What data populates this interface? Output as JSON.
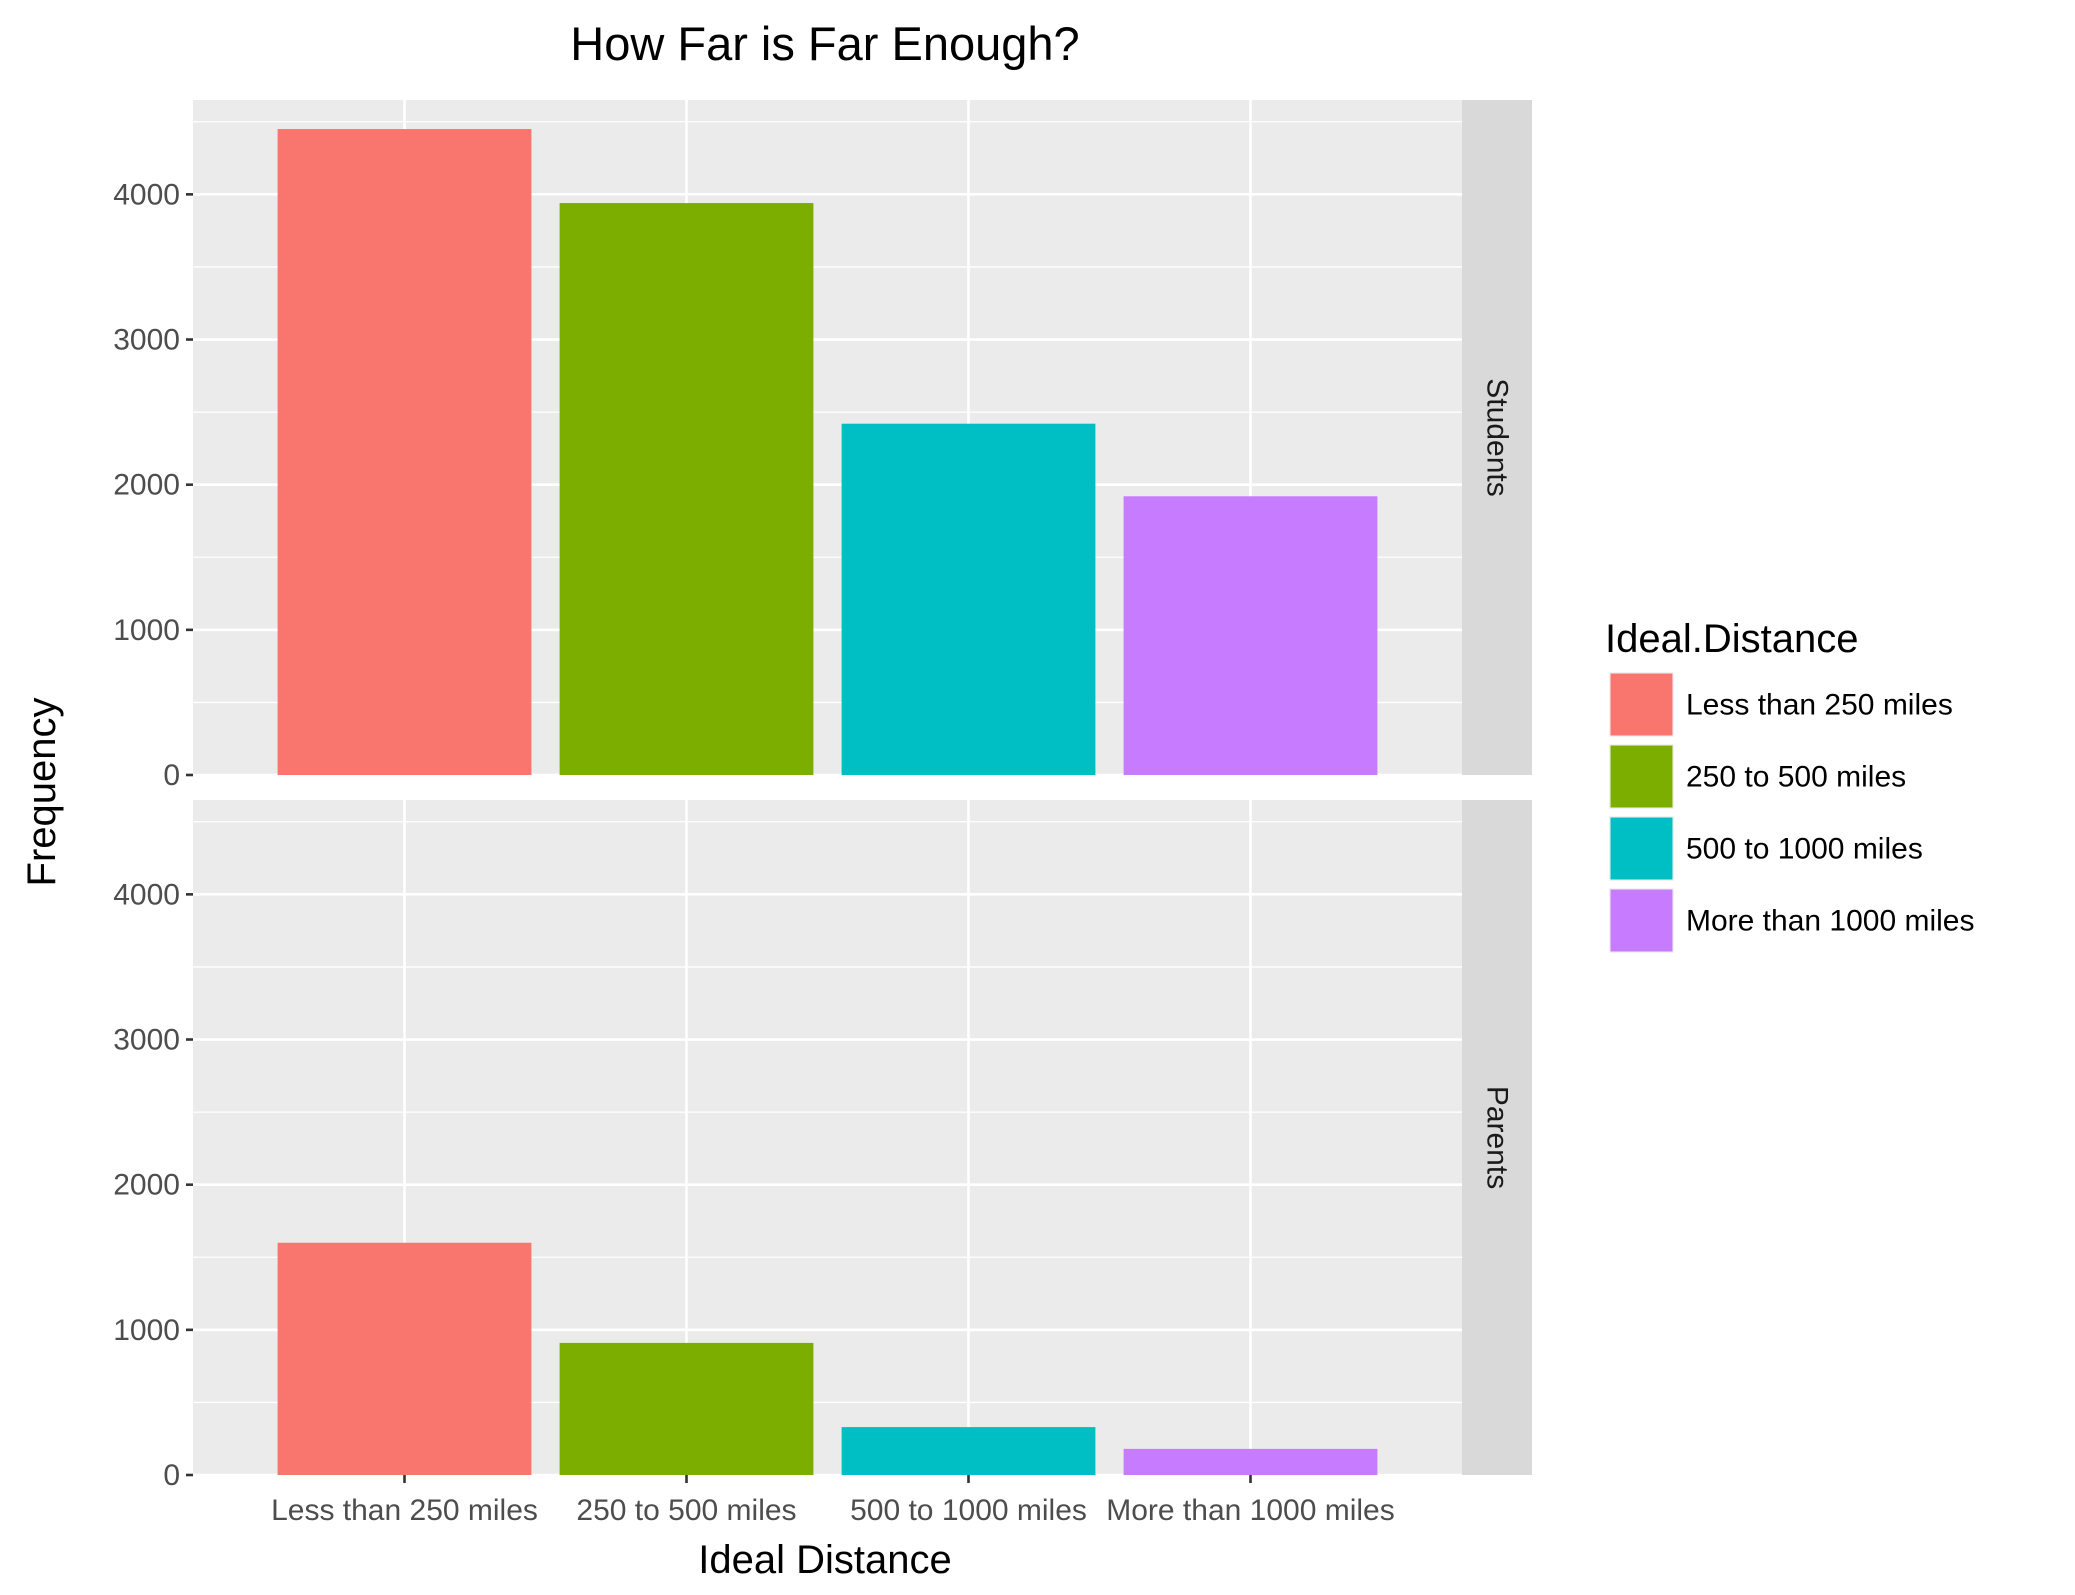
{
  "chart_data": {
    "type": "bar",
    "title": "How Far is Far Enough?",
    "xlabel": "Ideal Distance",
    "ylabel": "Frequency",
    "categories": [
      "Less than 250 miles",
      "250 to 500 miles",
      "500 to 1000 miles",
      "More than 1000 miles"
    ],
    "ylim": [
      0,
      4650
    ],
    "yticks": [
      "0",
      "1000",
      "2000",
      "3000",
      "4000"
    ],
    "grid": true,
    "legend": {
      "title": "Ideal.Distance",
      "placement": "right",
      "entries": [
        {
          "label": "Less than 250 miles",
          "color": "#F8766D"
        },
        {
          "label": "250 to 500 miles",
          "color": "#7CAE00"
        },
        {
          "label": "500 to 1000 miles",
          "color": "#00BFC4"
        },
        {
          "label": "More than 1000 miles",
          "color": "#C77CFF"
        }
      ]
    },
    "panels": [
      {
        "strip": "Students",
        "values": [
          4450,
          3940,
          2420,
          1920
        ]
      },
      {
        "strip": "Parents",
        "values": [
          1600,
          910,
          330,
          180
        ]
      }
    ]
  }
}
